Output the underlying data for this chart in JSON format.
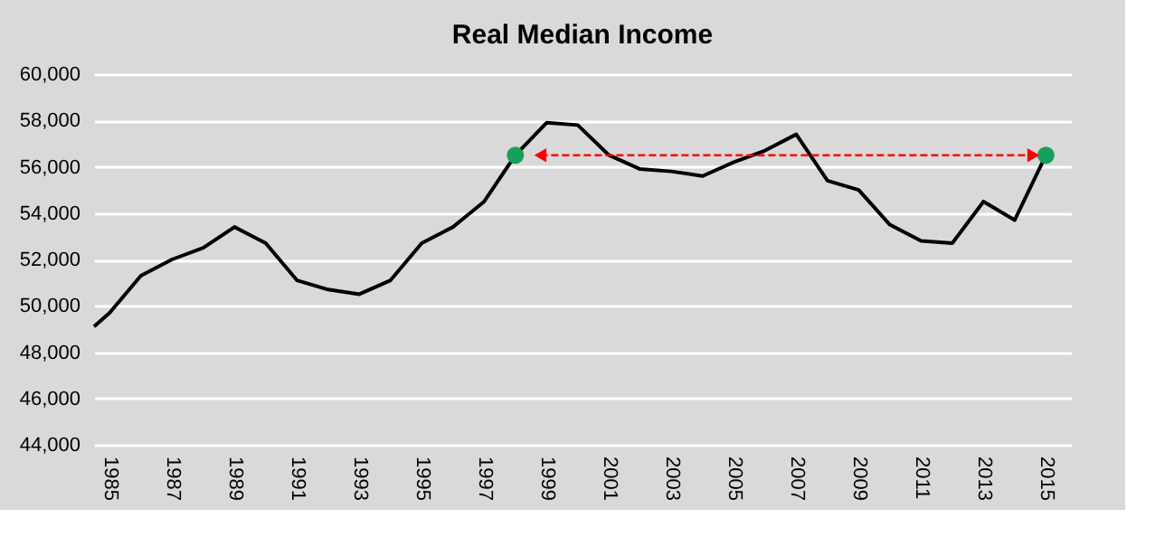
{
  "chart_data": {
    "type": "line",
    "title": "Real Median Income",
    "x": [
      1984.5,
      1985,
      1986,
      1987,
      1988,
      1989,
      1990,
      1991,
      1992,
      1993,
      1994,
      1995,
      1996,
      1997,
      1998,
      1999,
      2000,
      2001,
      2002,
      2003,
      2004,
      2005,
      2006,
      2007,
      2008,
      2009,
      2010,
      2011,
      2012,
      2013,
      2014,
      2015
    ],
    "series": [
      {
        "color": "#000000",
        "values": [
          49100,
          49700,
          51300,
          52000,
          52500,
          53400,
          52700,
          51100,
          50700,
          50500,
          51100,
          52700,
          53400,
          54500,
          56500,
          57900,
          57800,
          56500,
          55900,
          55800,
          55600,
          56200,
          56700,
          57400,
          55400,
          55000,
          53500,
          52800,
          52700,
          54500,
          53700,
          56500
        ]
      },
      {
        "type": "scatter",
        "color": "#16a05a",
        "marker": "circle",
        "x": [
          1998,
          2015
        ],
        "values": [
          56500,
          56500
        ]
      },
      {
        "type": "line",
        "color": "#ff0000",
        "line_style": "dashed",
        "marker": "triangle",
        "x": [
          1998.8,
          2014.6
        ],
        "values": [
          56500,
          56500
        ]
      }
    ],
    "xlim": [
      1984.5,
      2015.8
    ],
    "xticks": [
      1985,
      1987,
      1989,
      1991,
      1993,
      1995,
      1997,
      1999,
      2001,
      2003,
      2005,
      2007,
      2009,
      2011,
      2013,
      2015
    ],
    "ylim": [
      44000,
      60000
    ],
    "yticks": [
      {
        "value": 44000,
        "label": "44,000"
      },
      {
        "value": 46000,
        "label": "46,000"
      },
      {
        "value": 48000,
        "label": "48,000"
      },
      {
        "value": 50000,
        "label": "50,000"
      },
      {
        "value": 52000,
        "label": "52,000"
      },
      {
        "value": 54000,
        "label": "54,000"
      },
      {
        "value": 56000,
        "label": "56,000"
      },
      {
        "value": 58000,
        "label": "58,000"
      },
      {
        "value": 60000,
        "label": "60,000"
      }
    ],
    "grid": "y"
  }
}
